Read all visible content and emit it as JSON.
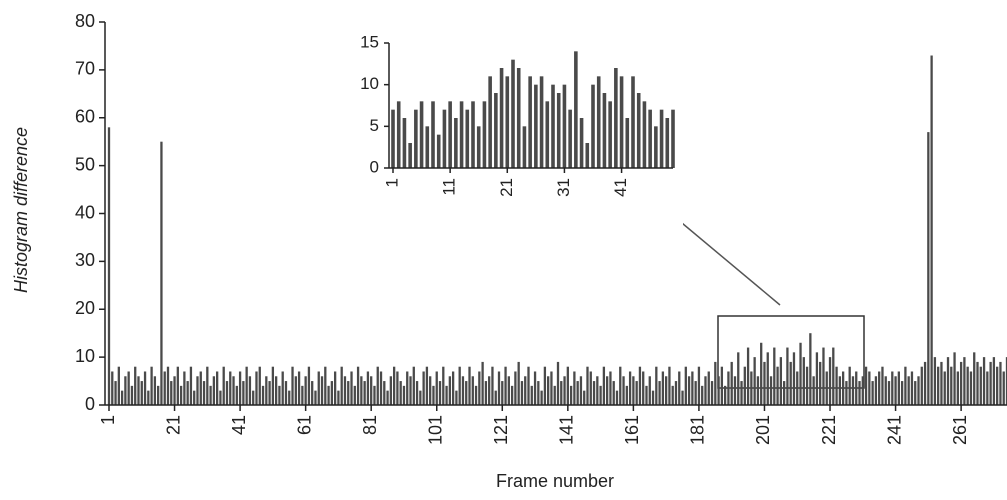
{
  "chart_data": [
    {
      "type": "bar",
      "xlabel": "Frame number",
      "ylabel": "Histogram difference",
      "color": "#4a4a4a",
      "x": [
        1,
        2,
        3,
        4,
        5,
        6,
        7,
        8,
        9,
        10,
        11,
        12,
        13,
        14,
        15,
        16,
        17,
        18,
        19,
        20,
        21,
        22,
        23,
        24,
        25,
        26,
        27,
        28,
        29,
        30,
        31,
        32,
        33,
        34,
        35,
        36,
        37,
        38,
        39,
        40,
        41,
        42,
        43,
        44,
        45,
        46,
        47,
        48,
        49,
        50,
        51,
        52,
        53,
        54,
        55,
        56,
        57,
        58,
        59,
        60,
        61,
        62,
        63,
        64,
        65,
        66,
        67,
        68,
        69,
        70,
        71,
        72,
        73,
        74,
        75,
        76,
        77,
        78,
        79,
        80,
        81,
        82,
        83,
        84,
        85,
        86,
        87,
        88,
        89,
        90,
        91,
        92,
        93,
        94,
        95,
        96,
        97,
        98,
        99,
        100,
        101,
        102,
        103,
        104,
        105,
        106,
        107,
        108,
        109,
        110,
        111,
        112,
        113,
        114,
        115,
        116,
        117,
        118,
        119,
        120,
        121,
        122,
        123,
        124,
        125,
        126,
        127,
        128,
        129,
        130,
        131,
        132,
        133,
        134,
        135,
        136,
        137,
        138,
        139,
        140,
        141,
        142,
        143,
        144,
        145,
        146,
        147,
        148,
        149,
        150,
        151,
        152,
        153,
        154,
        155,
        156,
        157,
        158,
        159,
        160,
        161,
        162,
        163,
        164,
        165,
        166,
        167,
        168,
        169,
        170,
        171,
        172,
        173,
        174,
        175,
        176,
        177,
        178,
        179,
        180,
        181,
        182,
        183,
        184,
        185,
        186,
        187,
        188,
        189,
        190,
        191,
        192,
        193,
        194,
        195,
        196,
        197,
        198,
        199,
        200,
        201,
        202,
        203,
        204,
        205,
        206,
        207,
        208,
        209,
        210,
        211,
        212,
        213,
        214,
        215,
        216,
        217,
        218,
        219,
        220,
        221,
        222,
        223,
        224,
        225,
        226,
        227,
        228,
        229,
        230,
        231,
        232,
        233,
        234,
        235,
        236,
        237,
        238,
        239,
        240,
        241,
        242,
        243,
        244,
        245,
        246,
        247,
        248,
        249,
        250,
        251,
        252,
        253,
        254,
        255,
        256,
        257,
        258,
        259,
        260,
        261,
        262,
        263,
        264,
        265,
        266,
        267,
        268,
        269,
        270,
        271,
        272,
        273,
        274,
        275
      ],
      "values": [
        58,
        7,
        5,
        8,
        3,
        6,
        7,
        4,
        8,
        6,
        5,
        7,
        3,
        8,
        6,
        4,
        55,
        7,
        8,
        5,
        6,
        8,
        4,
        7,
        5,
        8,
        3,
        6,
        7,
        5,
        8,
        4,
        6,
        7,
        3,
        8,
        5,
        7,
        6,
        4,
        7,
        5,
        8,
        6,
        3,
        7,
        8,
        4,
        6,
        5,
        8,
        6,
        4,
        7,
        5,
        3,
        8,
        6,
        7,
        4,
        6,
        8,
        5,
        3,
        7,
        6,
        8,
        4,
        5,
        7,
        3,
        8,
        6,
        5,
        7,
        4,
        8,
        6,
        5,
        7,
        6,
        4,
        8,
        7,
        5,
        3,
        6,
        8,
        7,
        5,
        4,
        7,
        6,
        8,
        5,
        3,
        7,
        8,
        6,
        4,
        7,
        5,
        8,
        4,
        6,
        7,
        3,
        8,
        6,
        5,
        8,
        6,
        4,
        7,
        9,
        5,
        6,
        8,
        3,
        7,
        5,
        8,
        6,
        4,
        7,
        9,
        5,
        6,
        8,
        4,
        7,
        5,
        3,
        8,
        6,
        7,
        4,
        9,
        5,
        6,
        8,
        4,
        7,
        5,
        6,
        3,
        8,
        7,
        5,
        6,
        4,
        8,
        6,
        7,
        5,
        3,
        8,
        6,
        4,
        7,
        6,
        5,
        8,
        7,
        4,
        6,
        3,
        8,
        5,
        7,
        6,
        8,
        4,
        5,
        7,
        3,
        8,
        6,
        7,
        5,
        8,
        4,
        6,
        7,
        5,
        9,
        6,
        8,
        4,
        7,
        9,
        6,
        11,
        5,
        8,
        12,
        7,
        10,
        6,
        13,
        9,
        11,
        6,
        12,
        8,
        10,
        5,
        12,
        9,
        11,
        7,
        13,
        10,
        8,
        15,
        6,
        11,
        9,
        12,
        7,
        10,
        12,
        8,
        6,
        7,
        5,
        8,
        6,
        7,
        5,
        6,
        8,
        7,
        5,
        6,
        7,
        8,
        6,
        5,
        7,
        6,
        7,
        5,
        8,
        6,
        7,
        5,
        6,
        8,
        9,
        57,
        73,
        10,
        8,
        9,
        7,
        10,
        8,
        11,
        7,
        9,
        10,
        8,
        7,
        11,
        9,
        8,
        10,
        7,
        9,
        10,
        8,
        9,
        7,
        10
      ],
      "xlim": [
        1,
        275
      ],
      "xticks": [
        1,
        21,
        41,
        61,
        81,
        101,
        121,
        141,
        161,
        181,
        201,
        221,
        241,
        261
      ],
      "ylim": [
        0,
        80
      ],
      "yticks": [
        0,
        10,
        20,
        30,
        40,
        50,
        60,
        70,
        80
      ]
    },
    {
      "type": "bar",
      "color": "#4a4a4a",
      "x": [
        1,
        2,
        3,
        4,
        5,
        6,
        7,
        8,
        9,
        10,
        11,
        12,
        13,
        14,
        15,
        16,
        17,
        18,
        19,
        20,
        21,
        22,
        23,
        24,
        25,
        26,
        27,
        28,
        29,
        30,
        31,
        32,
        33,
        34,
        35,
        36,
        37,
        38,
        39,
        40,
        41,
        42,
        43,
        44,
        45,
        46,
        47,
        48,
        49,
        50
      ],
      "values": [
        7,
        8,
        6,
        3,
        7,
        8,
        5,
        8,
        4,
        7,
        8,
        6,
        8,
        7,
        8,
        5,
        8,
        11,
        9,
        12,
        11,
        13,
        12,
        5,
        11,
        10,
        11,
        8,
        10,
        9,
        10,
        7,
        14,
        6,
        3,
        10,
        11,
        9,
        8,
        12,
        11,
        6,
        11,
        9,
        8,
        7,
        5,
        7,
        6,
        7
      ],
      "xlim": [
        1,
        50
      ],
      "xticks": [
        1,
        11,
        21,
        31,
        41
      ],
      "ylim": [
        0,
        15
      ],
      "yticks": [
        0,
        5,
        10,
        15
      ]
    }
  ]
}
